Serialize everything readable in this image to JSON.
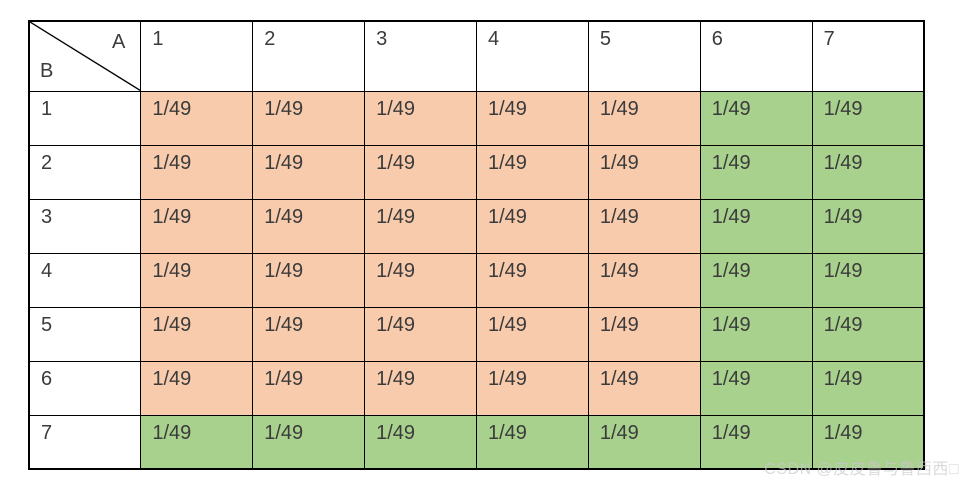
{
  "colors": {
    "orange": "#F8CBAD",
    "green": "#A9D18E",
    "white": "#FFFFFF",
    "border": "#000000",
    "text": "#3B3B3B"
  },
  "table": {
    "corner": {
      "top_right_label": "A",
      "bottom_left_label": "B"
    },
    "column_headers": [
      "1",
      "2",
      "3",
      "4",
      "5",
      "6",
      "7"
    ],
    "rows": [
      {
        "header": "1",
        "values": [
          "1/49",
          "1/49",
          "1/49",
          "1/49",
          "1/49",
          "1/49",
          "1/49"
        ],
        "fills": [
          "orange",
          "orange",
          "orange",
          "orange",
          "orange",
          "green",
          "green"
        ]
      },
      {
        "header": "2",
        "values": [
          "1/49",
          "1/49",
          "1/49",
          "1/49",
          "1/49",
          "1/49",
          "1/49"
        ],
        "fills": [
          "orange",
          "orange",
          "orange",
          "orange",
          "orange",
          "green",
          "green"
        ]
      },
      {
        "header": "3",
        "values": [
          "1/49",
          "1/49",
          "1/49",
          "1/49",
          "1/49",
          "1/49",
          "1/49"
        ],
        "fills": [
          "orange",
          "orange",
          "orange",
          "orange",
          "orange",
          "green",
          "green"
        ]
      },
      {
        "header": "4",
        "values": [
          "1/49",
          "1/49",
          "1/49",
          "1/49",
          "1/49",
          "1/49",
          "1/49"
        ],
        "fills": [
          "orange",
          "orange",
          "orange",
          "orange",
          "orange",
          "green",
          "green"
        ]
      },
      {
        "header": "5",
        "values": [
          "1/49",
          "1/49",
          "1/49",
          "1/49",
          "1/49",
          "1/49",
          "1/49"
        ],
        "fills": [
          "orange",
          "orange",
          "orange",
          "orange",
          "orange",
          "green",
          "green"
        ]
      },
      {
        "header": "6",
        "values": [
          "1/49",
          "1/49",
          "1/49",
          "1/49",
          "1/49",
          "1/49",
          "1/49"
        ],
        "fills": [
          "orange",
          "orange",
          "orange",
          "orange",
          "orange",
          "green",
          "green"
        ]
      },
      {
        "header": "7",
        "values": [
          "1/49",
          "1/49",
          "1/49",
          "1/49",
          "1/49",
          "1/49",
          "1/49"
        ],
        "fills": [
          "green",
          "green",
          "green",
          "green",
          "green",
          "green",
          "green"
        ]
      }
    ]
  },
  "watermark": {
    "text": "CSDN @皮皮鲁与鲁西西□"
  }
}
